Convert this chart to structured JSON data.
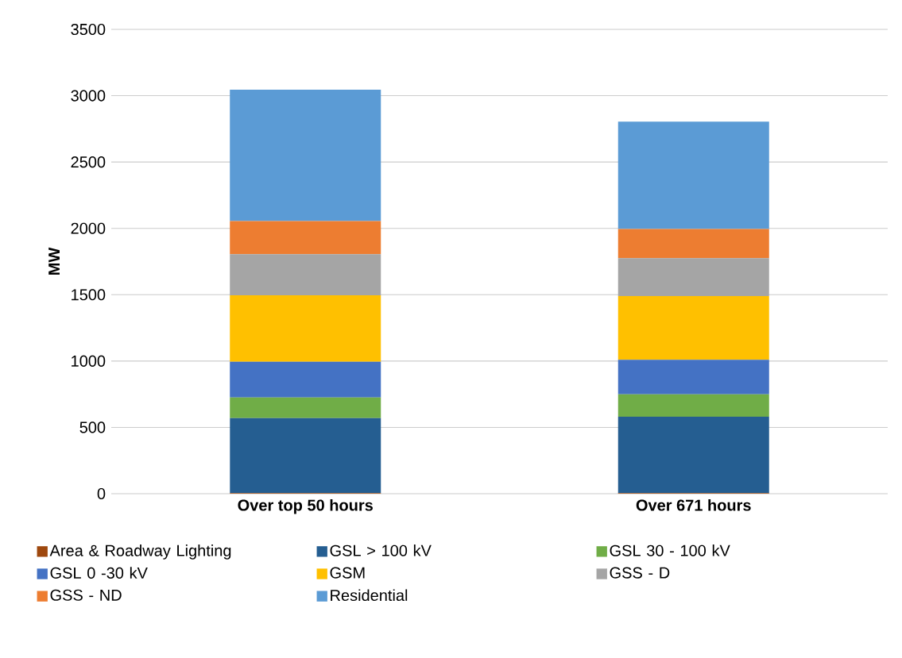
{
  "chart_data": {
    "type": "bar",
    "stacked": true,
    "ylabel": "MW",
    "categories": [
      "Over top 50 hours",
      "Over 671 hours"
    ],
    "series": [
      {
        "name": "Area & Roadway Lighting",
        "color": "#9e480e",
        "values": [
          5,
          5
        ]
      },
      {
        "name": "GSL > 100 kV",
        "color": "#255e91",
        "values": [
          565,
          575
        ]
      },
      {
        "name": "GSL 30 - 100 kV",
        "color": "#70ad47",
        "values": [
          155,
          170
        ]
      },
      {
        "name": "GSL 0 -30 kV",
        "color": "#4472c4",
        "values": [
          270,
          260
        ]
      },
      {
        "name": "GSM",
        "color": "#ffc000",
        "values": [
          500,
          480
        ]
      },
      {
        "name": "GSS - D",
        "color": "#a5a5a5",
        "values": [
          310,
          285
        ]
      },
      {
        "name": "GSS - ND",
        "color": "#ed7d31",
        "values": [
          250,
          220
        ]
      },
      {
        "name": "Residential",
        "color": "#5b9bd5",
        "values": [
          990,
          810
        ]
      }
    ],
    "ylim": [
      0,
      3500
    ],
    "yticks": [
      0,
      500,
      1000,
      1500,
      2000,
      2500,
      3000,
      3500
    ],
    "grid": "y",
    "legend": "bottom"
  }
}
